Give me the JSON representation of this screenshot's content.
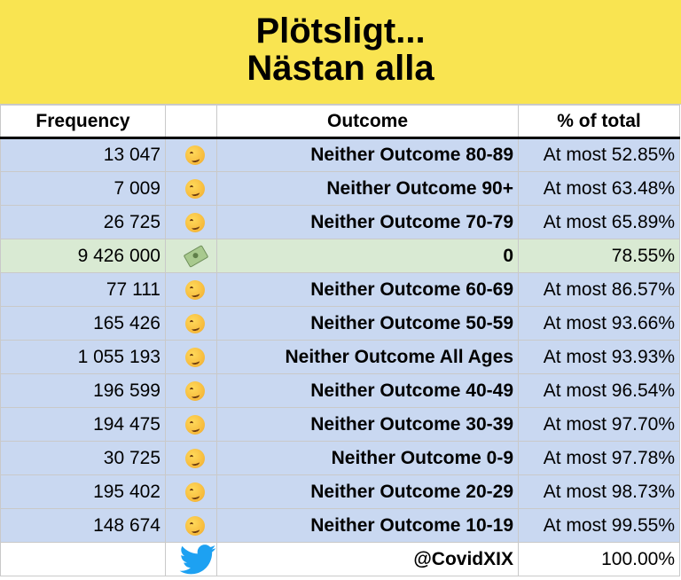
{
  "title": {
    "line1": "Plötsligt...",
    "line2": "Nästan alla"
  },
  "columns": {
    "frequency": "Frequency",
    "outcome": "Outcome",
    "pct": "% of total"
  },
  "colors": {
    "title_bg": "#f9e451",
    "row_blue": "#c9d8f1",
    "row_green": "#d9ead3",
    "twitter_blue": "#1da1f2"
  },
  "rows": [
    {
      "frequency": "13 047",
      "icon": "smirk-face-icon",
      "outcome": "Neither Outcome 80-89",
      "pct": "At most 52.85%"
    },
    {
      "frequency": "7 009",
      "icon": "smirk-face-icon",
      "outcome": "Neither Outcome 90+",
      "pct": "At most 63.48%"
    },
    {
      "frequency": "26 725",
      "icon": "smirk-face-icon",
      "outcome": "Neither Outcome 70-79",
      "pct": "At most 65.89%"
    },
    {
      "frequency": "9 426 000",
      "icon": "money-wings-icon",
      "outcome": "0",
      "pct": "78.55%"
    },
    {
      "frequency": "77 111",
      "icon": "smirk-face-icon",
      "outcome": "Neither Outcome 60-69",
      "pct": "At most 86.57%"
    },
    {
      "frequency": "165 426",
      "icon": "smirk-face-icon",
      "outcome": "Neither Outcome 50-59",
      "pct": "At most 93.66%"
    },
    {
      "frequency": "1 055 193",
      "icon": "smirk-face-icon",
      "outcome": "Neither Outcome All Ages",
      "pct": "At most 93.93%"
    },
    {
      "frequency": "196 599",
      "icon": "smirk-face-icon",
      "outcome": "Neither Outcome 40-49",
      "pct": "At most 96.54%"
    },
    {
      "frequency": "194 475",
      "icon": "smirk-face-icon",
      "outcome": "Neither Outcome 30-39",
      "pct": "At most 97.70%"
    },
    {
      "frequency": "30 725",
      "icon": "smirk-face-icon",
      "outcome": "Neither Outcome 0-9",
      "pct": "At most 97.78%"
    },
    {
      "frequency": "195 402",
      "icon": "smirk-face-icon",
      "outcome": "Neither Outcome 20-29",
      "pct": "At most 98.73%"
    },
    {
      "frequency": "148 674",
      "icon": "smirk-face-icon",
      "outcome": "Neither Outcome 10-19",
      "pct": "At most 99.55%"
    }
  ],
  "footer": {
    "frequency": "",
    "icon": "twitter-bird-icon",
    "outcome": "@CovidXIX",
    "pct": "100.00%"
  }
}
